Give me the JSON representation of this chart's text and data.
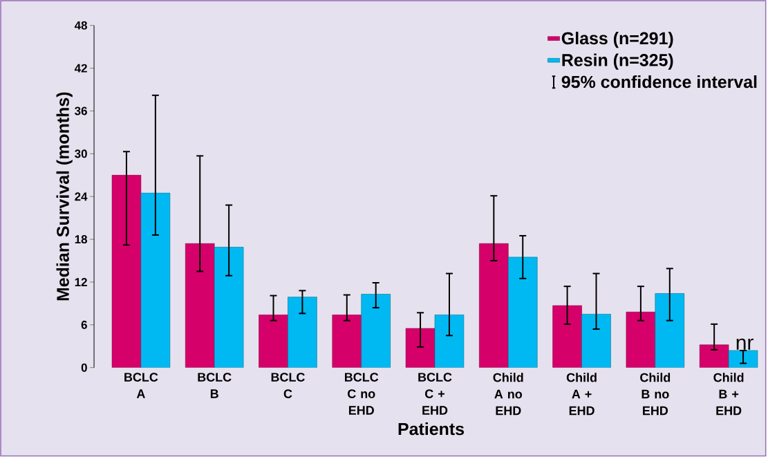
{
  "chart_data": {
    "type": "bar",
    "xlabel": "Patients",
    "ylabel": "Median Survival (months)",
    "categories": [
      "BCLC A",
      "BCLC B",
      "BCLC C",
      "BCLC C no EHD",
      "BCLC C + EHD",
      "Child A no EHD",
      "Child A + EHD",
      "Child B no EHD",
      "Child B + EHD"
    ],
    "series": [
      {
        "name": "Glass (n=291)",
        "color": "#d6006a",
        "values": [
          27.0,
          17.4,
          7.4,
          7.4,
          5.5,
          17.4,
          8.7,
          7.8,
          3.2
        ],
        "errors": [
          [
            17.2,
            30.3
          ],
          [
            13.5,
            29.7
          ],
          [
            6.6,
            10.1
          ],
          [
            6.6,
            10.2
          ],
          [
            2.9,
            7.7
          ],
          [
            15.0,
            24.1
          ],
          [
            6.1,
            11.4
          ],
          [
            6.6,
            11.4
          ],
          [
            2.5,
            6.1
          ]
        ]
      },
      {
        "name": "Resin (n=325)",
        "color": "#00b9f2",
        "values": [
          24.5,
          16.9,
          9.9,
          10.3,
          7.4,
          15.5,
          7.5,
          10.4,
          2.4
        ],
        "errors": [
          [
            18.6,
            38.2
          ],
          [
            12.9,
            22.8
          ],
          [
            7.6,
            10.8
          ],
          [
            8.4,
            11.9
          ],
          [
            4.5,
            13.2
          ],
          [
            12.5,
            18.5
          ],
          [
            5.4,
            13.2
          ],
          [
            6.6,
            13.9
          ],
          [
            0.6,
            2.4
          ]
        ]
      }
    ],
    "annotations": [
      "95% confidence interval",
      {
        "text": "nr",
        "x": "Child B + EHD",
        "y": 2.4
      }
    ],
    "ylim": [
      0,
      48
    ],
    "yticks": [
      0,
      6,
      12,
      18,
      24,
      30,
      36,
      42,
      48
    ],
    "legend": "top right",
    "grid": false
  }
}
